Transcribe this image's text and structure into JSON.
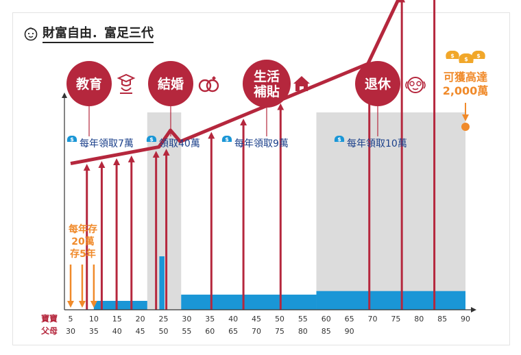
{
  "title": "財富自由．富足三代",
  "icons": {
    "title": "baby-face-icon",
    "education": "graduate-icon",
    "marriage": "rings-icon",
    "living": "house-icon",
    "retire": "old-man-icon",
    "money": "money-bag-icon"
  },
  "colors": {
    "primary": "#b5273d",
    "blue": "#1a96d6",
    "orange": "#f08a2a",
    "gray": "#dcdcdc"
  },
  "chart_data": {
    "type": "bar",
    "xaxis_label_child": "寶寶",
    "xaxis_label_parent": "父母",
    "child_ticks": [
      5,
      10,
      15,
      20,
      25,
      30,
      35,
      40,
      45,
      50,
      55,
      60,
      65,
      70,
      75,
      80,
      85,
      90
    ],
    "parent_ticks": [
      30,
      35,
      40,
      45,
      50,
      55,
      60,
      65,
      70,
      75,
      80,
      85,
      90
    ],
    "xlim": [
      5,
      90
    ],
    "deposit": {
      "text": [
        "每年存",
        "20萬",
        "存5年"
      ],
      "ages": [
        5,
        7.5,
        10
      ]
    },
    "withdrawals": {
      "ages": [
        8.5,
        11.7,
        14.9,
        18.1,
        23.4,
        25.6,
        35.3,
        42.2,
        50.2,
        69.3,
        76.3,
        83.3
      ]
    },
    "blue_bars": [
      {
        "from": 10,
        "to": 21.5,
        "level": 1
      },
      {
        "from": 24.1,
        "to": 25.2,
        "level": 6
      },
      {
        "from": 28.8,
        "to": 57.9,
        "level": 1.7
      },
      {
        "from": 57.9,
        "to": 90,
        "level": 2.1
      }
    ],
    "gray_periods": [
      {
        "from": 21.5,
        "to": 28.8
      },
      {
        "from": 57.9,
        "to": 90
      }
    ],
    "wealth_line": {
      "x": [
        5,
        24,
        28,
        27.4,
        69,
        90
      ],
      "y": [
        22,
        24.5,
        27,
        25,
        37,
        68
      ]
    },
    "phases": [
      {
        "label": [
          "教育"
        ],
        "note": "每年領取7萬",
        "icon": "graduate-icon"
      },
      {
        "label": [
          "結婚"
        ],
        "note": "領取40萬",
        "icon": "rings-icon"
      },
      {
        "label": [
          "生活",
          "補貼"
        ],
        "note": "每年領取9萬",
        "icon": "house-icon"
      },
      {
        "label": [
          "退休"
        ],
        "note": "每年領取10萬",
        "icon": "old-man-icon"
      }
    ],
    "final": {
      "text": [
        "可獲高達",
        "2,000萬"
      ]
    }
  }
}
